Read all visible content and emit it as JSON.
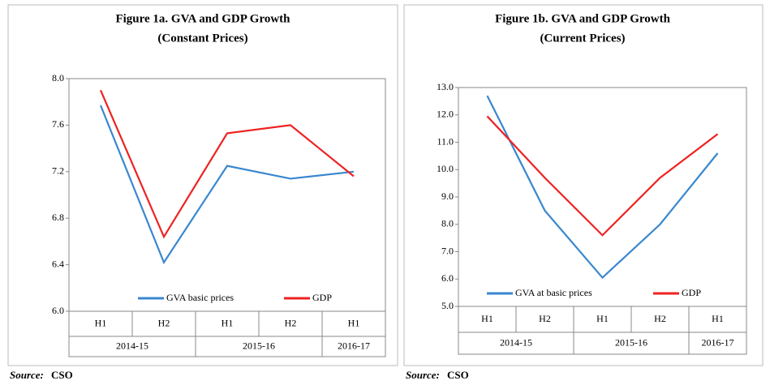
{
  "chart_data": [
    {
      "type": "line",
      "title": "Figure 1a. GVA and GDP Growth",
      "subtitle": "(Constant Prices)",
      "groups": [
        {
          "label": "2014-15",
          "categories": [
            "H1",
            "H2"
          ]
        },
        {
          "label": "2015-16",
          "categories": [
            "H1",
            "H2"
          ]
        },
        {
          "label": "2016-17",
          "categories": [
            "H1"
          ]
        }
      ],
      "series": [
        {
          "name": "GVA basic prices",
          "color": "#3a87cf",
          "values": [
            7.77,
            6.42,
            7.25,
            7.14,
            7.2
          ]
        },
        {
          "name": "GDP",
          "color": "#ee2222",
          "values": [
            7.9,
            6.64,
            7.53,
            7.6,
            7.16
          ]
        }
      ],
      "ylim": [
        6.0,
        8.0
      ],
      "yticks": [
        {
          "value": 6.0,
          "label": "6.0"
        },
        6.4,
        6.8,
        7.2,
        7.6,
        {
          "value": 8.0,
          "label": "8.0"
        }
      ],
      "grid": false,
      "legend": "bottom",
      "source_label": "Source:",
      "source": "CSO"
    },
    {
      "type": "line",
      "title": "Figure 1b. GVA and GDP Growth",
      "subtitle": "(Current Prices)",
      "groups": [
        {
          "label": "2014-15",
          "categories": [
            "H1",
            "H2"
          ]
        },
        {
          "label": "2015-16",
          "categories": [
            "H1",
            "H2"
          ]
        },
        {
          "label": "2016-17",
          "categories": [
            "H1"
          ]
        }
      ],
      "series": [
        {
          "name": "GVA at basic prices",
          "color": "#3a87cf",
          "values": [
            12.7,
            8.5,
            6.05,
            8.0,
            10.6
          ]
        },
        {
          "name": "GDP",
          "color": "#ee2222",
          "values": [
            11.95,
            9.7,
            7.6,
            9.7,
            11.3
          ]
        }
      ],
      "ylim": [
        5.0,
        13.0
      ],
      "yticks": [
        {
          "value": 5.0,
          "label": "5.0"
        },
        {
          "value": 6.0,
          "label": "6.0"
        },
        {
          "value": 7.0,
          "label": "7.0"
        },
        {
          "value": 8.0,
          "label": "8.0"
        },
        {
          "value": 9.0,
          "label": "9.0"
        },
        {
          "value": 10.0,
          "label": "10.0"
        },
        {
          "value": 11.0,
          "label": "11.0"
        },
        {
          "value": 12.0,
          "label": "12.0"
        },
        {
          "value": 13.0,
          "label": "13.0"
        }
      ],
      "grid": false,
      "legend": "bottom",
      "source_label": "Source:",
      "source": "CSO"
    }
  ]
}
